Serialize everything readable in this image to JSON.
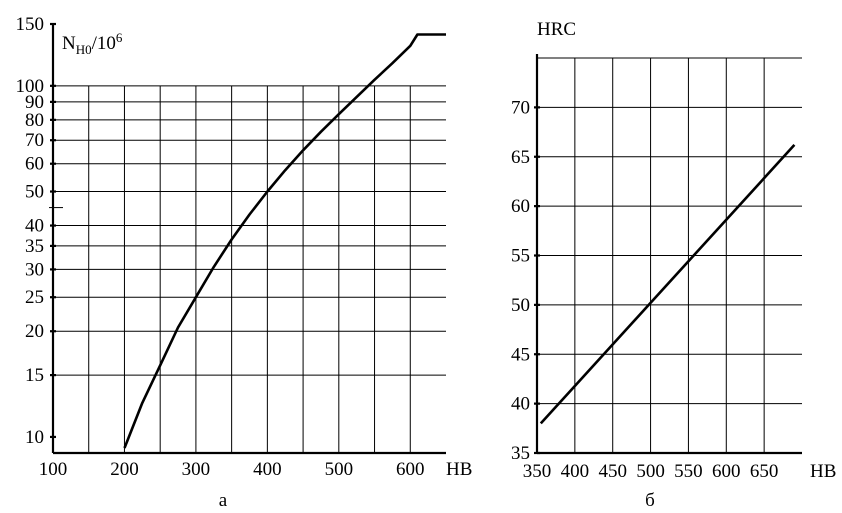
{
  "chart_data": [
    {
      "type": "line",
      "panel_label": "а",
      "title": "",
      "ylabel_parts": {
        "base": "N",
        "sub": "H0",
        "rest": "/10",
        "sup": "6"
      },
      "xlabel": "HB",
      "x_scale": "linear",
      "y_scale": "log",
      "xlim": [
        100,
        650
      ],
      "ylim": [
        9,
        150
      ],
      "x_ticks": [
        100,
        200,
        300,
        400,
        500,
        600
      ],
      "x_tick_labels": [
        "100",
        "200",
        "300",
        "400",
        "500",
        "600"
      ],
      "x_gridlines": [
        150,
        200,
        250,
        300,
        350,
        400,
        450,
        500,
        550,
        600
      ],
      "y_ticks": [
        10,
        15,
        20,
        25,
        30,
        35,
        40,
        50,
        60,
        70,
        80,
        90,
        100,
        150
      ],
      "y_tick_labels": [
        "10",
        "15",
        "20",
        "25",
        "30",
        "35",
        "40",
        "50",
        "60",
        "70",
        "80",
        "90",
        "100",
        "150"
      ],
      "y_extra_ticks": [
        45
      ],
      "grid": true,
      "series": [
        {
          "x": [
            200,
            225,
            250,
            275,
            300,
            325,
            350,
            375,
            400,
            425,
            450,
            475,
            500,
            525,
            550,
            575,
            600,
            610,
            650
          ],
          "y": [
            9.3,
            12.5,
            16.0,
            20.5,
            25.0,
            30.5,
            36.5,
            43.0,
            50.0,
            57.5,
            65.5,
            74.0,
            83.0,
            93.0,
            104.0,
            116.0,
            130.0,
            140.0,
            140.0
          ]
        }
      ]
    },
    {
      "type": "line",
      "panel_label": "б",
      "title": "",
      "ylabel": "HRC",
      "xlabel": "HB",
      "xlim": [
        350,
        700
      ],
      "ylim": [
        35,
        75
      ],
      "x_ticks": [
        350,
        400,
        450,
        500,
        550,
        600,
        650
      ],
      "x_tick_labels": [
        "350",
        "400",
        "450",
        "500",
        "550",
        "600",
        "650"
      ],
      "x_gridlines": [
        400,
        450,
        500,
        550,
        600,
        650
      ],
      "y_ticks": [
        35,
        40,
        45,
        50,
        55,
        60,
        65,
        70
      ],
      "y_tick_labels": [
        "35",
        "40",
        "45",
        "50",
        "55",
        "60",
        "65",
        "70"
      ],
      "y_gridlines": [
        40,
        45,
        50,
        55,
        60,
        65,
        70,
        75
      ],
      "grid": true,
      "series": [
        {
          "x": [
            355,
            690
          ],
          "y": [
            38.0,
            66.2
          ]
        }
      ]
    }
  ]
}
